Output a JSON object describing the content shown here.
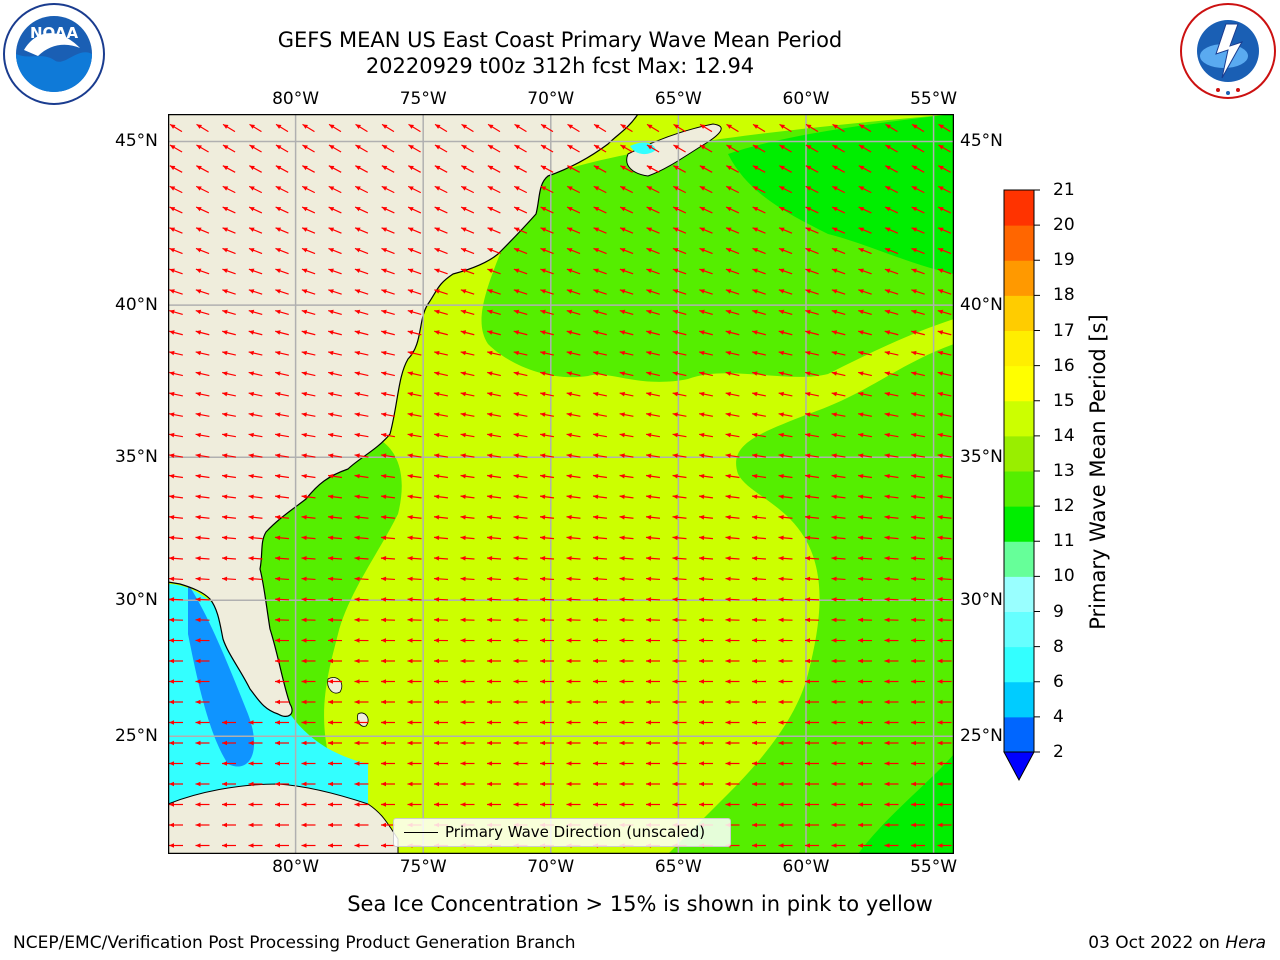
{
  "title": {
    "line1": "GEFS MEAN US East Coast Primary Wave Mean Period",
    "line2": "20220929 t00z 312h fcst   Max: 12.94"
  },
  "logos": {
    "left": {
      "icon": "noaa-logo",
      "text": "NOAA",
      "ring_text": "NATIONAL OCEANIC AND ATMOSPHERIC ADMINISTRATION · U.S. DEPARTMENT OF COMMERCE"
    },
    "right": {
      "icon": "nws-logo",
      "ring_text": "NATIONAL WEATHER SERVICE"
    }
  },
  "map": {
    "lon_range": [
      -85,
      -54.2
    ],
    "lat_range": [
      20.5,
      45.8
    ],
    "lon_ticks": [
      "80°W",
      "75°W",
      "70°W",
      "65°W",
      "60°W",
      "55°W"
    ],
    "lon_values": [
      -80,
      -75,
      -70,
      -65,
      -60,
      -55
    ],
    "lat_ticks": [
      "45°N",
      "40°N",
      "35°N",
      "30°N",
      "25°N"
    ],
    "lat_values": [
      45,
      40,
      35,
      30,
      25
    ],
    "land_color": "#efeddc",
    "arrow_color": "#ff0000",
    "grid_color": "#b0b0b0"
  },
  "colorbar": {
    "label": "Primary Wave Mean Period [s]",
    "ticks": [
      "2",
      "4",
      "6",
      "8",
      "9",
      "10",
      "11",
      "12",
      "13",
      "14",
      "15",
      "16",
      "17",
      "18",
      "19",
      "20",
      "21"
    ],
    "colors": [
      "#0066ff",
      "#00ccff",
      "#33ffff",
      "#66ffff",
      "#99ffff",
      "#66ff99",
      "#00ee00",
      "#55ee00",
      "#99ee00",
      "#ccff00",
      "#ffff00",
      "#ffee00",
      "#ffcc00",
      "#ff9900",
      "#ff6600",
      "#ff3300",
      "#ff0000"
    ],
    "under_color": "#0000ff"
  },
  "legend": {
    "label": "Primary Wave Direction (unscaled)"
  },
  "caption": "Sea Ice Concentration > 15% is shown in pink to yellow",
  "footer": {
    "left": "NCEP/EMC/Verification Post Processing Product Generation Branch",
    "right_date": "03 Oct 2022 on ",
    "right_host": "Hera"
  }
}
